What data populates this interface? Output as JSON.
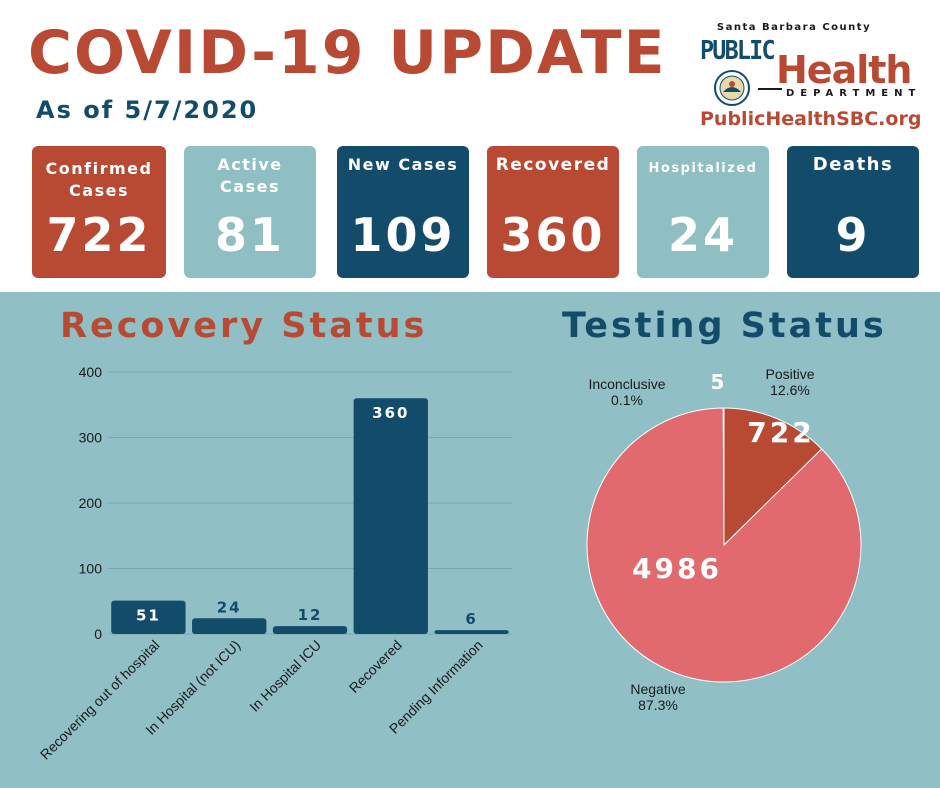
{
  "header": {
    "title": "COVID-19 UPDATE",
    "as_of": "As of 5/7/2020"
  },
  "logo": {
    "county": "Santa Barbara County",
    "public": "PUBLIC",
    "health": "Health",
    "department": "DEPARTMENT",
    "url": "PublicHealthSBC.org"
  },
  "stats": [
    {
      "label": "Confirmed Cases",
      "value": "722",
      "color": "#b84a33"
    },
    {
      "label": "Active Cases",
      "value": "81",
      "color": "#8fbfc3"
    },
    {
      "label": "New Cases",
      "value": "109",
      "color": "#124c6a"
    },
    {
      "label": "Recovered",
      "value": "360",
      "color": "#b84a33"
    },
    {
      "label": "Hospitalized",
      "value": "24",
      "color": "#8fbfc3"
    },
    {
      "label": "Deaths",
      "value": "9",
      "color": "#124c6a"
    }
  ],
  "colors": {
    "red": "#b84a33",
    "light_teal": "#8fbfc3",
    "dark_blue": "#124c6a",
    "panel": "#90c0c6",
    "pie_negative": "#e06a6e"
  },
  "chart_data": [
    {
      "type": "bar",
      "title": "Recovery Status",
      "categories": [
        "Recovering out of hospital",
        "In Hospital (not ICU)",
        "In Hospital ICU",
        "Recovered",
        "Pending Information"
      ],
      "values": [
        51,
        24,
        12,
        360,
        6
      ],
      "ylim": [
        0,
        400
      ],
      "yticks": [
        0,
        100,
        200,
        300,
        400
      ],
      "grid": true,
      "color": "#124c6a"
    },
    {
      "type": "pie",
      "title": "Testing Status",
      "slices": [
        {
          "label": "Positive",
          "value": 722,
          "percent": "12.6%",
          "color": "#b84a33"
        },
        {
          "label": "Negative",
          "value": 4986,
          "percent": "87.3%",
          "color": "#e06a6e"
        },
        {
          "label": "Inconclusive",
          "value": 5,
          "percent": "0.1%",
          "color": "#b84a33"
        }
      ]
    }
  ]
}
